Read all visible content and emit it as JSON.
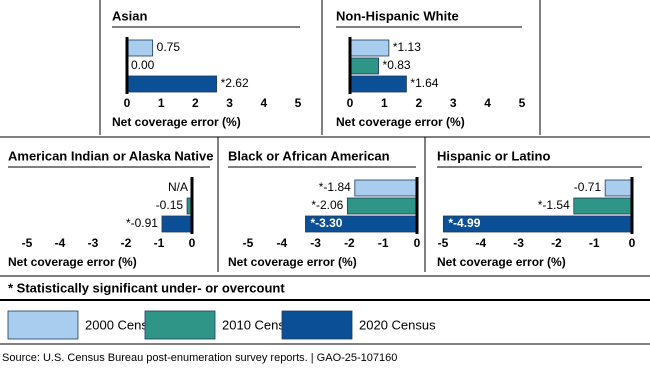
{
  "chart_data": [
    {
      "type": "bar",
      "orientation": "horizontal",
      "title": "Asian",
      "xlabel": "Net coverage error (%)",
      "values": [
        0.75,
        0,
        2.62
      ],
      "value_labels": [
        "0.75",
        "0.00",
        "*2.62"
      ],
      "xlim": [
        0,
        5
      ],
      "xticks": [
        0,
        1,
        2,
        3,
        4,
        5
      ]
    },
    {
      "type": "bar",
      "orientation": "horizontal",
      "title": "Non-Hispanic White",
      "xlabel": "Net coverage error (%)",
      "values": [
        1.13,
        0.83,
        1.64
      ],
      "value_labels": [
        "*1.13",
        "*0.83",
        "*1.64"
      ],
      "xlim": [
        0,
        5
      ],
      "xticks": [
        0,
        1,
        2,
        3,
        4,
        5
      ]
    },
    {
      "type": "bar",
      "orientation": "horizontal",
      "title": "American Indian or Alaska Native",
      "xlabel": "Net coverage error (%)",
      "values": [
        null,
        -0.15,
        -0.91
      ],
      "value_labels": [
        "N/A",
        "-0.15",
        "*-0.91"
      ],
      "xlim": [
        -5,
        0
      ],
      "xticks": [
        -5,
        -4,
        -3,
        -2,
        -1,
        0
      ]
    },
    {
      "type": "bar",
      "orientation": "horizontal",
      "title": "Black or African American",
      "xlabel": "Net coverage error (%)",
      "values": [
        -1.84,
        -2.06,
        -3.3
      ],
      "value_labels": [
        "*-1.84",
        "*-2.06",
        "*-3.30"
      ],
      "xlim": [
        -5,
        0
      ],
      "xticks": [
        -5,
        -4,
        -3,
        -2,
        -1,
        0
      ]
    },
    {
      "type": "bar",
      "orientation": "horizontal",
      "title": "Hispanic or Latino",
      "xlabel": "Net coverage error (%)",
      "values": [
        -0.71,
        -1.54,
        -4.99
      ],
      "value_labels": [
        "-0.71",
        "*-1.54",
        "*-4.99"
      ],
      "xlim": [
        -5,
        0
      ],
      "xticks": [
        -5,
        -4,
        -3,
        -2,
        -1,
        0
      ]
    }
  ],
  "legend": [
    {
      "name": "2000 Census",
      "color": "#a9cdef"
    },
    {
      "name": "2010 Census",
      "color": "#2f9586"
    },
    {
      "name": "2020 Census",
      "color": "#0b4f96"
    }
  ],
  "footnote": "* Statistically significant under- or overcount",
  "source": "Source:  U.S. Census Bureau post-enumeration survey reports.  |  GAO-25-107160"
}
